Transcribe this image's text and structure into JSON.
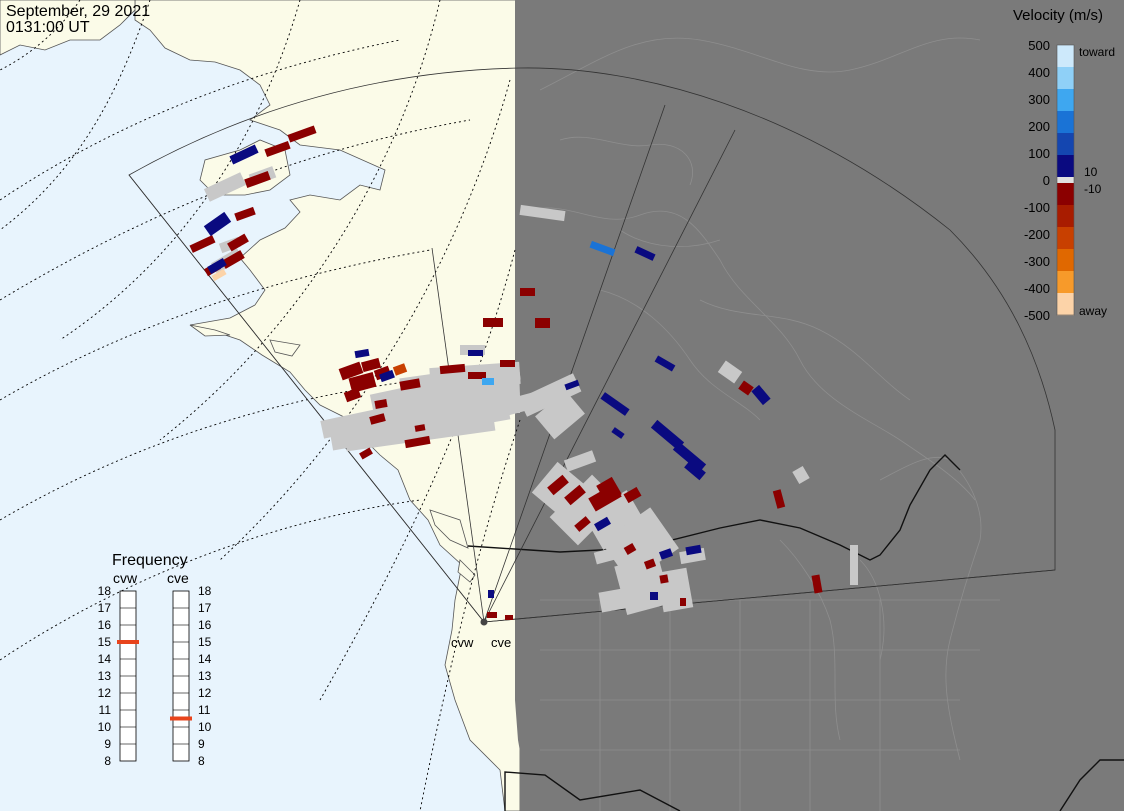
{
  "header": {
    "date": "September, 29 2021",
    "time": "0131:00 UT"
  },
  "colorbar": {
    "title": "Velocity (m/s)",
    "ticks": [
      "500",
      "400",
      "300",
      "200",
      "100",
      "0",
      "-100",
      "-200",
      "-300",
      "-400",
      "-500"
    ],
    "label_toward": "toward",
    "label_away": "away",
    "label_pos10": "10",
    "label_neg10": "-10",
    "colors": [
      "#cde9fb",
      "#8fd0f7",
      "#3ea7f0",
      "#1a73d6",
      "#1446b0",
      "#0a0a80",
      "#e0e0e0",
      "#8b0000",
      "#a81c00",
      "#c84000",
      "#e06800",
      "#f79a2a",
      "#fcd3a8"
    ]
  },
  "frequency_panel": {
    "title": "Frequency",
    "radar_left": "cvw",
    "radar_right": "cve",
    "scale": [
      "18",
      "17",
      "16",
      "15",
      "14",
      "13",
      "12",
      "11",
      "10",
      "9",
      "8"
    ],
    "cvw_frequency_mhz": 15,
    "cve_frequency_mhz": 10.5,
    "marker_color": "#e8441c"
  },
  "map": {
    "radar_site_labels": [
      "cvw",
      "cve"
    ],
    "ocean_color": "#e8f4fd",
    "land_color": "#fbfbe8",
    "night_shade_color": "#7a7a7a",
    "positive_velocity_color": "#0a0a80",
    "negative_velocity_color": "#8b0000",
    "ground_scatter_color": "#c8c8c8"
  }
}
